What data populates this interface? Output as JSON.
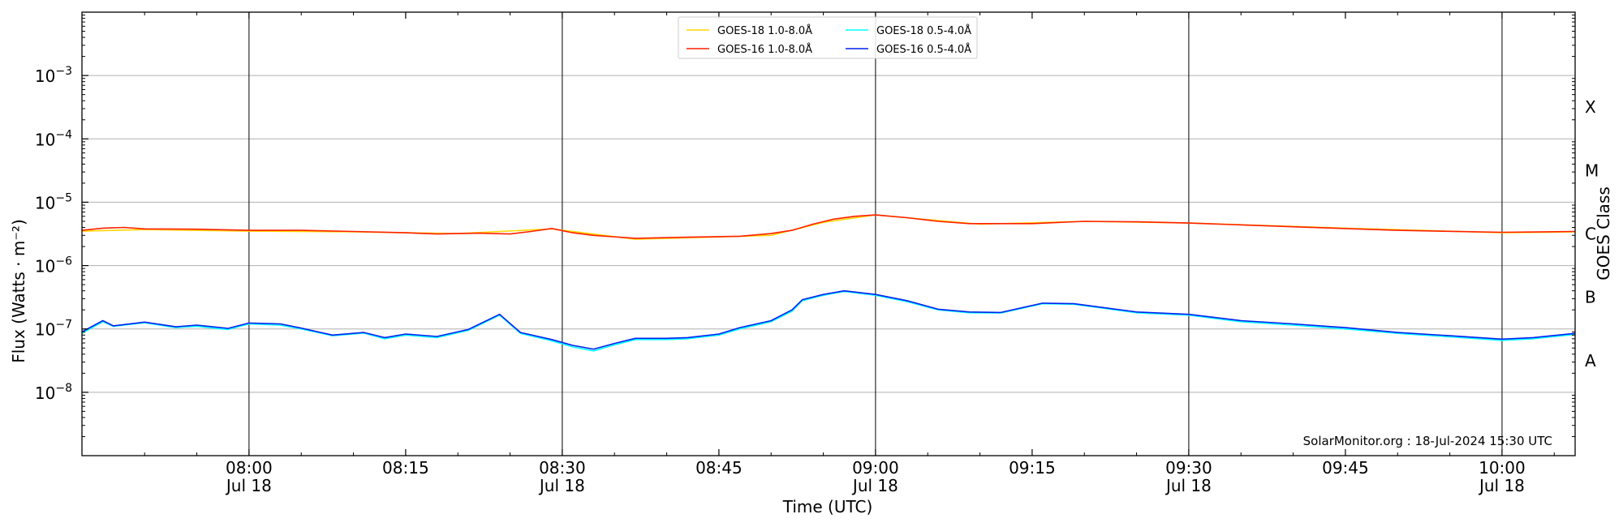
{
  "chart_data": {
    "type": "line",
    "xlabel": "Time (UTC)",
    "ylabel": "Flux (Watts · m⁻²)",
    "ylabel_right": "GOES Class",
    "y_scale": "log",
    "ylim": [
      1e-09,
      0.01
    ],
    "y_ticks": [
      {
        "value": 1e-08,
        "base": "10",
        "exp": "−8"
      },
      {
        "value": 1e-07,
        "base": "10",
        "exp": "−7"
      },
      {
        "value": 1e-06,
        "base": "10",
        "exp": "−6"
      },
      {
        "value": 1e-05,
        "base": "10",
        "exp": "−5"
      },
      {
        "value": 0.0001,
        "base": "10",
        "exp": "−4"
      },
      {
        "value": 0.001,
        "base": "10",
        "exp": "−3"
      }
    ],
    "xlim": [
      "2024-07-18 07:44",
      "2024-07-18 10:07"
    ],
    "x_ticks": [
      {
        "time": "2024-07-18 08:00",
        "label": "08:00",
        "sublabel": "Jul 18",
        "vline": true
      },
      {
        "time": "2024-07-18 08:15",
        "label": "08:15",
        "sublabel": "",
        "vline": false
      },
      {
        "time": "2024-07-18 08:30",
        "label": "08:30",
        "sublabel": "Jul 18",
        "vline": true
      },
      {
        "time": "2024-07-18 08:45",
        "label": "08:45",
        "sublabel": "",
        "vline": false
      },
      {
        "time": "2024-07-18 09:00",
        "label": "09:00",
        "sublabel": "Jul 18",
        "vline": true
      },
      {
        "time": "2024-07-18 09:15",
        "label": "09:15",
        "sublabel": "",
        "vline": false
      },
      {
        "time": "2024-07-18 09:30",
        "label": "09:30",
        "sublabel": "Jul 18",
        "vline": true
      },
      {
        "time": "2024-07-18 09:45",
        "label": "09:45",
        "sublabel": "",
        "vline": false
      },
      {
        "time": "2024-07-18 10:00",
        "label": "10:00",
        "sublabel": "Jul 18",
        "vline": true
      }
    ],
    "goes_classes": [
      {
        "label": "A",
        "center": 3.16e-08
      },
      {
        "label": "B",
        "center": 3.16e-07
      },
      {
        "label": "C",
        "center": 3.16e-06
      },
      {
        "label": "M",
        "center": 3.16e-05
      },
      {
        "label": "X",
        "center": 0.000316
      }
    ],
    "grid": true,
    "legend_position": "top-center",
    "legend": [
      {
        "name": "GOES-18 1.0-8.0Å",
        "color": "#ffd700"
      },
      {
        "name": "GOES-18 0.5-4.0Å",
        "color": "#00ffff"
      },
      {
        "name": "GOES-16 1.0-8.0Å",
        "color": "#ff2000"
      },
      {
        "name": "GOES-16 0.5-4.0Å",
        "color": "#0022ee"
      }
    ],
    "series": [
      {
        "name": "GOES-18 1.0-8.0Å",
        "color": "#ffd700",
        "x": [
          "2024-07-18 07:44",
          "2024-07-18 07:50",
          "2024-07-18 08:00",
          "2024-07-18 08:10",
          "2024-07-18 08:20",
          "2024-07-18 08:29",
          "2024-07-18 08:37",
          "2024-07-18 08:50",
          "2024-07-18 08:55",
          "2024-07-18 09:00",
          "2024-07-18 09:10",
          "2024-07-18 09:20",
          "2024-07-18 09:30",
          "2024-07-18 09:45",
          "2024-07-18 10:00",
          "2024-07-18 10:07"
        ],
        "y": [
          3.5e-06,
          3.7e-06,
          3.5e-06,
          3.4e-06,
          3.2e-06,
          3.8e-06,
          2.6e-06,
          3e-06,
          4.8e-06,
          6.3e-06,
          4.5e-06,
          5e-06,
          4.7e-06,
          3.9e-06,
          3.3e-06,
          3.4e-06
        ]
      },
      {
        "name": "GOES-18 0.5-4.0Å",
        "color": "#00ffff",
        "x": [
          "2024-07-18 07:44",
          "2024-07-18 07:46",
          "2024-07-18 07:47",
          "2024-07-18 07:50",
          "2024-07-18 07:53",
          "2024-07-18 07:55",
          "2024-07-18 07:58",
          "2024-07-18 08:00",
          "2024-07-18 08:03",
          "2024-07-18 08:05",
          "2024-07-18 08:08",
          "2024-07-18 08:11",
          "2024-07-18 08:13",
          "2024-07-18 08:15",
          "2024-07-18 08:18",
          "2024-07-18 08:21",
          "2024-07-18 08:24",
          "2024-07-18 08:26",
          "2024-07-18 08:29",
          "2024-07-18 08:31",
          "2024-07-18 08:33",
          "2024-07-18 08:35",
          "2024-07-18 08:37",
          "2024-07-18 08:40",
          "2024-07-18 08:42",
          "2024-07-18 08:45",
          "2024-07-18 08:47",
          "2024-07-18 08:50",
          "2024-07-18 08:52",
          "2024-07-18 08:53",
          "2024-07-18 08:55",
          "2024-07-18 08:57",
          "2024-07-18 09:00",
          "2024-07-18 09:03",
          "2024-07-18 09:06",
          "2024-07-18 09:09",
          "2024-07-18 09:12",
          "2024-07-18 09:16",
          "2024-07-18 09:19",
          "2024-07-18 09:22",
          "2024-07-18 09:25",
          "2024-07-18 09:30",
          "2024-07-18 09:35",
          "2024-07-18 09:40",
          "2024-07-18 09:45",
          "2024-07-18 09:50",
          "2024-07-18 09:55",
          "2024-07-18 10:00",
          "2024-07-18 10:03",
          "2024-07-18 10:07"
        ],
        "y": [
          8.5e-08,
          1.3e-07,
          1.1e-07,
          1.25e-07,
          1.05e-07,
          1.1e-07,
          9.8e-08,
          1.2e-07,
          1.15e-07,
          1e-07,
          7.8e-08,
          8.6e-08,
          7e-08,
          8e-08,
          7.3e-08,
          9.5e-08,
          1.65e-07,
          8.5e-08,
          6.5e-08,
          5.2e-08,
          4.5e-08,
          5.6e-08,
          6.8e-08,
          6.8e-08,
          7e-08,
          8e-08,
          1e-07,
          1.3e-07,
          1.9e-07,
          2.8e-07,
          3.4e-07,
          3.9e-07,
          3.4e-07,
          2.7e-07,
          2e-07,
          1.8e-07,
          1.78e-07,
          2.5e-07,
          2.45e-07,
          2.1e-07,
          1.8e-07,
          1.65e-07,
          1.3e-07,
          1.15e-07,
          1e-07,
          8.5e-08,
          7.5e-08,
          6.6e-08,
          7e-08,
          8.2e-08
        ]
      },
      {
        "name": "GOES-16 1.0-8.0Å",
        "color": "#ff2000",
        "x": [
          "2024-07-18 07:44",
          "2024-07-18 07:46",
          "2024-07-18 07:48",
          "2024-07-18 07:50",
          "2024-07-18 07:55",
          "2024-07-18 08:00",
          "2024-07-18 08:05",
          "2024-07-18 08:10",
          "2024-07-18 08:15",
          "2024-07-18 08:18",
          "2024-07-18 08:22",
          "2024-07-18 08:25",
          "2024-07-18 08:27",
          "2024-07-18 08:29",
          "2024-07-18 08:31",
          "2024-07-18 08:33",
          "2024-07-18 08:37",
          "2024-07-18 08:42",
          "2024-07-18 08:47",
          "2024-07-18 08:50",
          "2024-07-18 08:52",
          "2024-07-18 08:54",
          "2024-07-18 08:56",
          "2024-07-18 08:58",
          "2024-07-18 09:00",
          "2024-07-18 09:03",
          "2024-07-18 09:06",
          "2024-07-18 09:09",
          "2024-07-18 09:15",
          "2024-07-18 09:20",
          "2024-07-18 09:25",
          "2024-07-18 09:30",
          "2024-07-18 09:40",
          "2024-07-18 09:50",
          "2024-07-18 10:00",
          "2024-07-18 10:07"
        ],
        "y": [
          3.6e-06,
          3.9e-06,
          4e-06,
          3.8e-06,
          3.75e-06,
          3.6e-06,
          3.6e-06,
          3.45e-06,
          3.3e-06,
          3.15e-06,
          3.25e-06,
          3.15e-06,
          3.45e-06,
          3.85e-06,
          3.3e-06,
          3e-06,
          2.7e-06,
          2.8e-06,
          2.9e-06,
          3.2e-06,
          3.6e-06,
          4.5e-06,
          5.4e-06,
          6e-06,
          6.3e-06,
          5.7e-06,
          5e-06,
          4.6e-06,
          4.6e-06,
          5e-06,
          4.9e-06,
          4.7e-06,
          4.1e-06,
          3.6e-06,
          3.35e-06,
          3.45e-06
        ]
      },
      {
        "name": "GOES-16 0.5-4.0Å",
        "color": "#0022ee",
        "x": [
          "2024-07-18 07:44",
          "2024-07-18 07:46",
          "2024-07-18 07:47",
          "2024-07-18 07:50",
          "2024-07-18 07:53",
          "2024-07-18 07:55",
          "2024-07-18 07:58",
          "2024-07-18 08:00",
          "2024-07-18 08:03",
          "2024-07-18 08:05",
          "2024-07-18 08:08",
          "2024-07-18 08:11",
          "2024-07-18 08:13",
          "2024-07-18 08:15",
          "2024-07-18 08:18",
          "2024-07-18 08:21",
          "2024-07-18 08:24",
          "2024-07-18 08:26",
          "2024-07-18 08:29",
          "2024-07-18 08:31",
          "2024-07-18 08:33",
          "2024-07-18 08:35",
          "2024-07-18 08:37",
          "2024-07-18 08:40",
          "2024-07-18 08:42",
          "2024-07-18 08:45",
          "2024-07-18 08:47",
          "2024-07-18 08:50",
          "2024-07-18 08:52",
          "2024-07-18 08:53",
          "2024-07-18 08:55",
          "2024-07-18 08:57",
          "2024-07-18 09:00",
          "2024-07-18 09:03",
          "2024-07-18 09:06",
          "2024-07-18 09:09",
          "2024-07-18 09:12",
          "2024-07-18 09:16",
          "2024-07-18 09:19",
          "2024-07-18 09:22",
          "2024-07-18 09:25",
          "2024-07-18 09:30",
          "2024-07-18 09:35",
          "2024-07-18 09:40",
          "2024-07-18 09:45",
          "2024-07-18 09:50",
          "2024-07-18 09:55",
          "2024-07-18 10:00",
          "2024-07-18 10:03",
          "2024-07-18 10:07"
        ],
        "y": [
          9e-08,
          1.35e-07,
          1.12e-07,
          1.28e-07,
          1.08e-07,
          1.15e-07,
          1.02e-07,
          1.24e-07,
          1.2e-07,
          1.03e-07,
          8e-08,
          8.8e-08,
          7.3e-08,
          8.3e-08,
          7.6e-08,
          9.8e-08,
          1.7e-07,
          8.8e-08,
          6.8e-08,
          5.5e-08,
          4.8e-08,
          5.9e-08,
          7.1e-08,
          7.1e-08,
          7.3e-08,
          8.3e-08,
          1.05e-07,
          1.35e-07,
          2e-07,
          2.9e-07,
          3.5e-07,
          4e-07,
          3.5e-07,
          2.8e-07,
          2.05e-07,
          1.85e-07,
          1.82e-07,
          2.55e-07,
          2.5e-07,
          2.15e-07,
          1.85e-07,
          1.7e-07,
          1.35e-07,
          1.2e-07,
          1.05e-07,
          8.8e-08,
          7.8e-08,
          6.9e-08,
          7.3e-08,
          8.5e-08
        ]
      }
    ],
    "credit": "SolarMonitor.org : 18-Jul-2024 15:30 UTC"
  }
}
